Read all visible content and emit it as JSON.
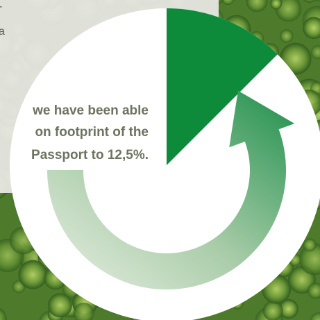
{
  "panel": {
    "fragments": [
      "-",
      "a"
    ],
    "lines": [
      "we have been able",
      "on footprint of the",
      "Passport to 12,5%."
    ]
  },
  "graphic": {
    "share": 12.5
  }
}
